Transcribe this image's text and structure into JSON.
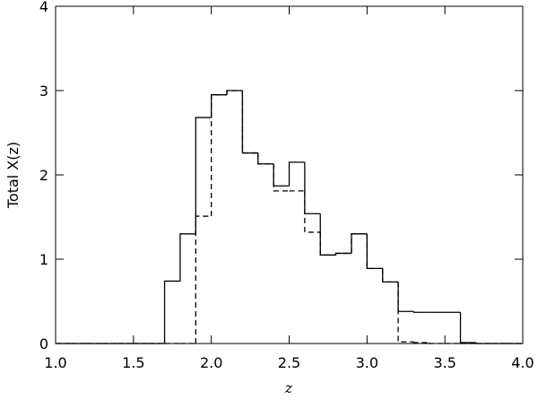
{
  "chart_data": {
    "type": "histogram",
    "xlabel": "z",
    "ylabel": "Total X(z)",
    "bins": [
      1.0,
      1.1,
      1.2,
      1.3,
      1.4,
      1.5,
      1.6,
      1.7,
      1.8,
      1.9,
      2.0,
      2.1,
      2.2,
      2.3,
      2.4,
      2.5,
      2.6,
      2.7,
      2.8,
      2.9,
      3.0,
      3.1,
      3.2,
      3.3,
      3.4,
      3.5,
      3.6,
      3.7,
      3.8,
      3.9,
      4.0
    ],
    "series": [
      {
        "color": "#000000",
        "dashed": false,
        "values": [
          0,
          0,
          0,
          0,
          0,
          0,
          0,
          0.74,
          1.3,
          2.68,
          2.95,
          3.0,
          2.26,
          2.13,
          1.87,
          2.15,
          1.54,
          1.05,
          1.07,
          1.3,
          0.89,
          0.73,
          0.38,
          0.37,
          0.37,
          0.37,
          0.01,
          0,
          0,
          0
        ]
      },
      {
        "color": "#000000",
        "dashed": true,
        "values": [
          0,
          0,
          0,
          0,
          0,
          0,
          0,
          0,
          0,
          1.51,
          2.95,
          3.0,
          2.26,
          2.13,
          1.81,
          1.81,
          1.32,
          1.05,
          1.07,
          1.3,
          0.89,
          0.73,
          0.02,
          0.01,
          0,
          0,
          0,
          0,
          0,
          0
        ]
      }
    ],
    "xlim": [
      1.0,
      4.0
    ],
    "ylim": [
      0,
      4
    ],
    "xticks": [
      {
        "value": 1.0,
        "label": "1.0"
      },
      {
        "value": 1.5,
        "label": "1.5"
      },
      {
        "value": 2.0,
        "label": "2.0"
      },
      {
        "value": 2.5,
        "label": "2.5"
      },
      {
        "value": 3.0,
        "label": "3.0"
      },
      {
        "value": 3.5,
        "label": "3.5"
      },
      {
        "value": 4.0,
        "label": "4.0"
      }
    ],
    "yticks": [
      0,
      1,
      2,
      3,
      4
    ]
  }
}
